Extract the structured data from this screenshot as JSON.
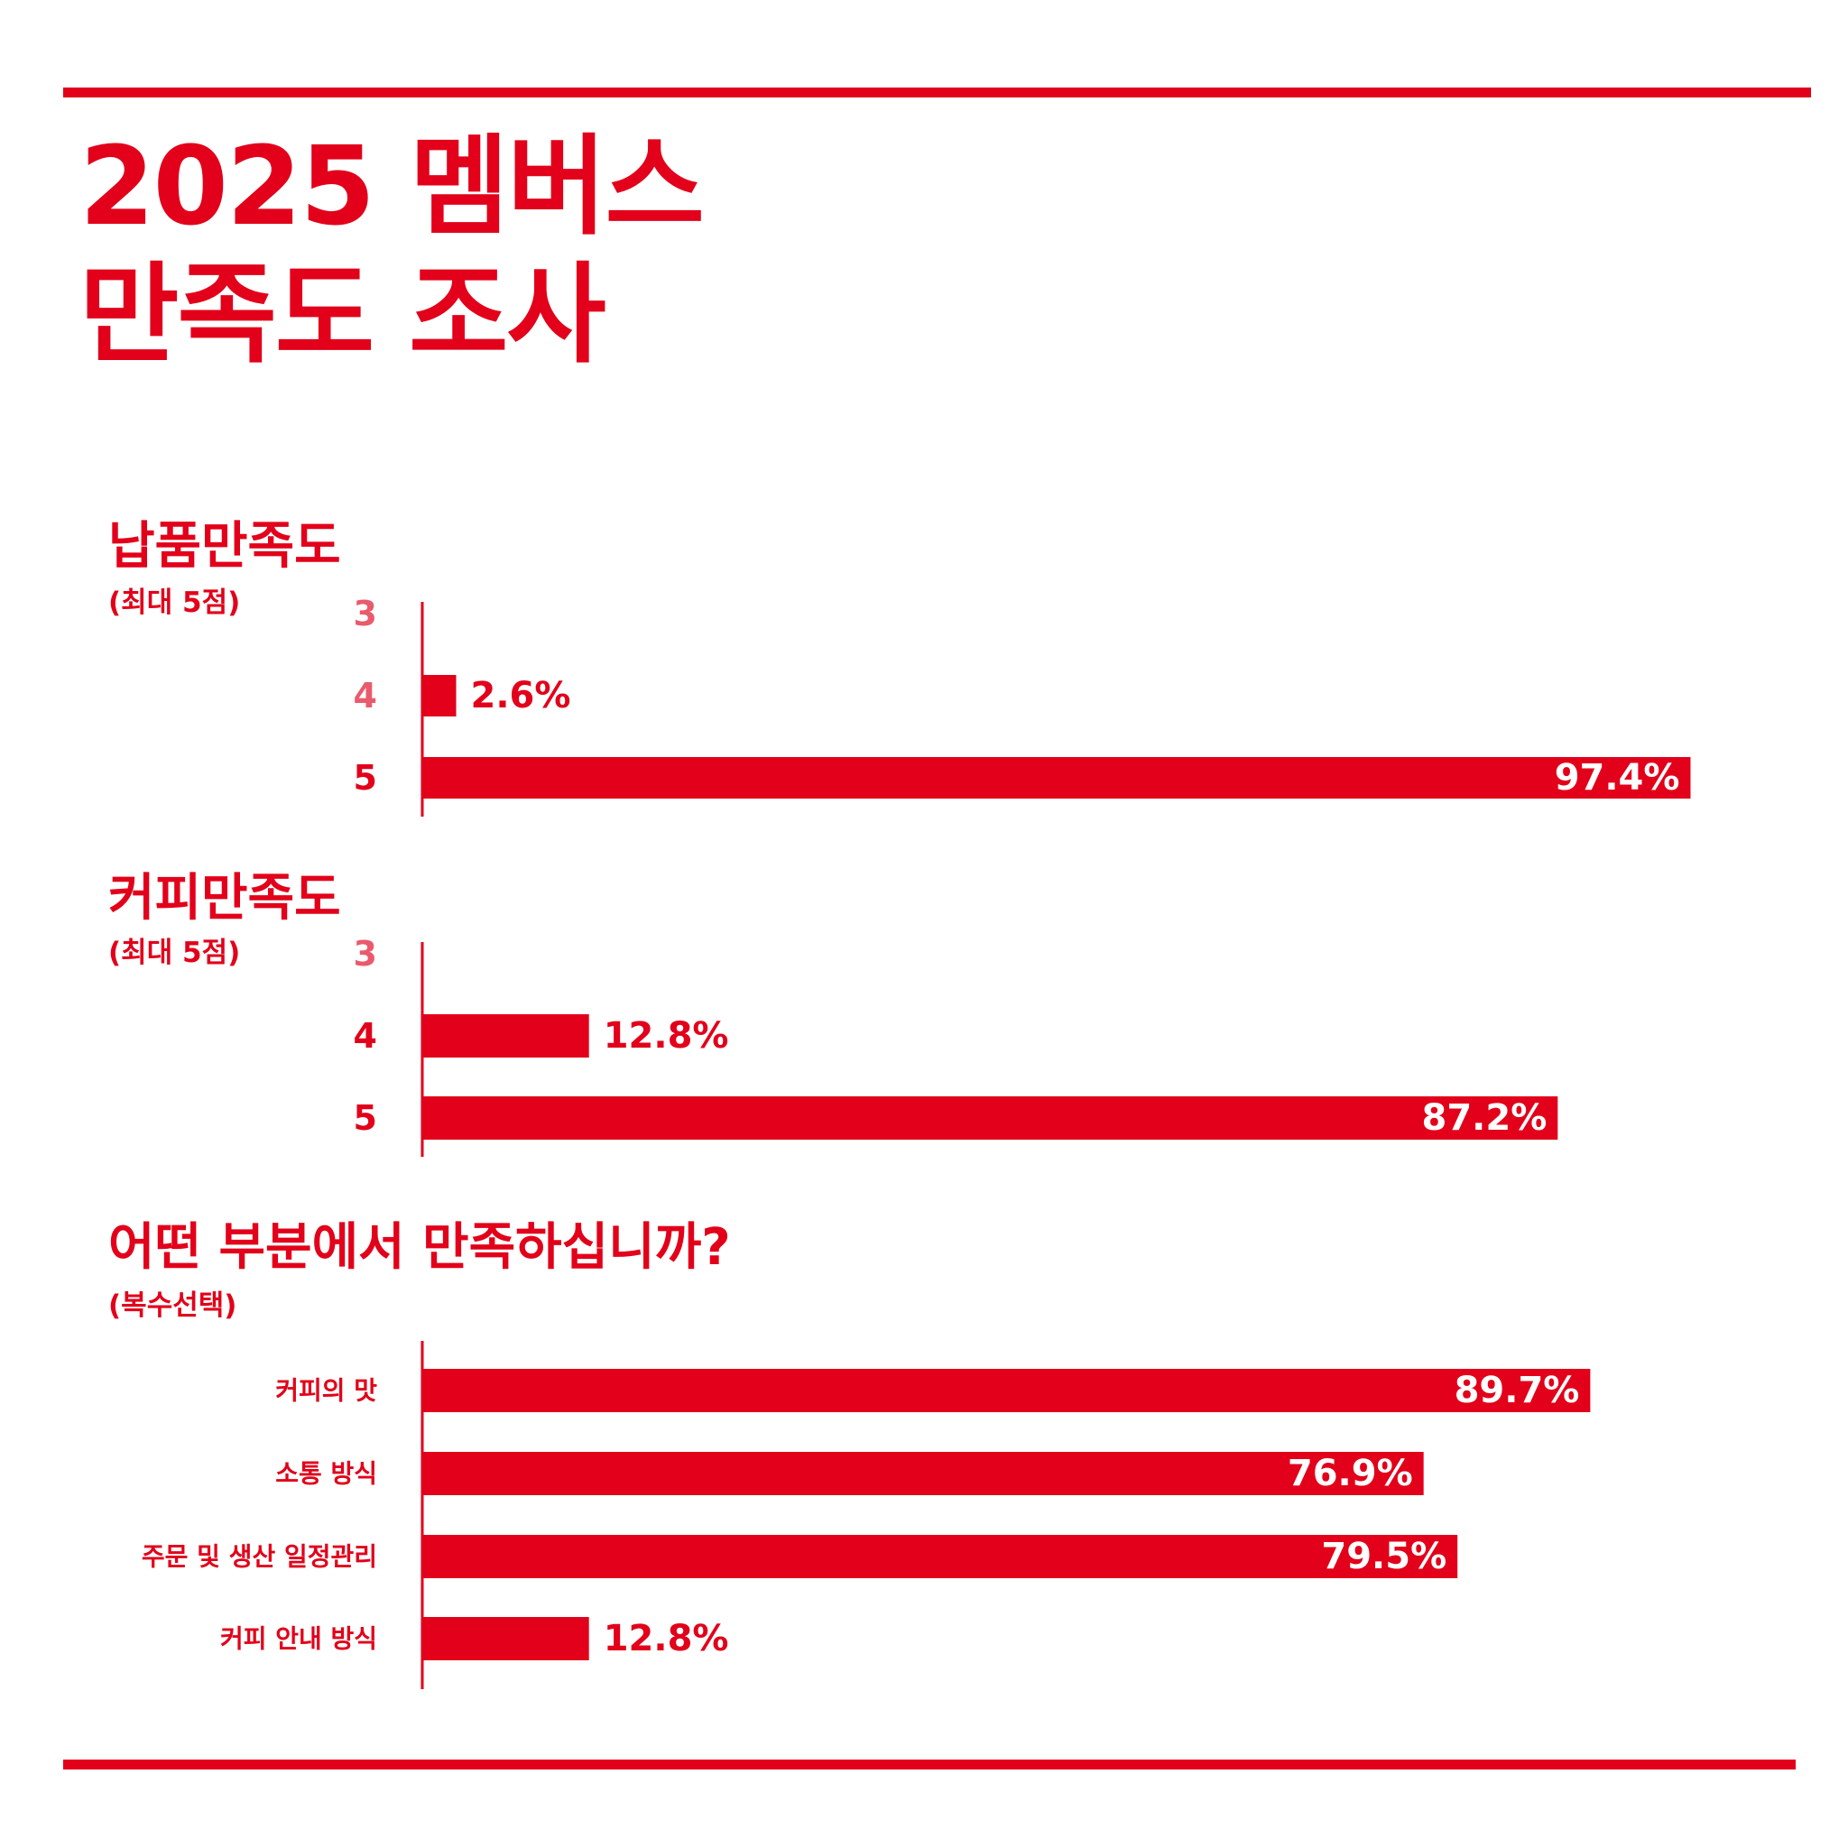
{
  "header": {
    "title_line1": "2025 멤버스",
    "title_line2": "만족도 조사"
  },
  "colors": {
    "primary": "#e2001a",
    "muted": "#ea5a6d",
    "background": "#ffffff",
    "on_bar": "#ffffff"
  },
  "chart_data": [
    {
      "type": "bar",
      "orientation": "horizontal",
      "title": "납품만족도",
      "subtitle": "(최대 5점)",
      "categories": [
        "3",
        "4",
        "5"
      ],
      "values": [
        0,
        2.6,
        97.4
      ],
      "value_labels": [
        "",
        "2.6%",
        "97.4%"
      ],
      "unit": "%",
      "xlim": [
        0,
        100
      ],
      "grid": false,
      "legend": "none"
    },
    {
      "type": "bar",
      "orientation": "horizontal",
      "title": "커피만족도",
      "subtitle": "(최대 5점)",
      "categories": [
        "3",
        "4",
        "5"
      ],
      "values": [
        0,
        12.8,
        87.2
      ],
      "value_labels": [
        "",
        "12.8%",
        "87.2%"
      ],
      "unit": "%",
      "xlim": [
        0,
        100
      ],
      "grid": false,
      "legend": "none"
    },
    {
      "type": "bar",
      "orientation": "horizontal",
      "title": "어떤 부분에서 만족하십니까?",
      "subtitle": "(복수선택)",
      "categories": [
        "커피의 맛",
        "소통 방식",
        "주문 및 생산 일정관리",
        "커피 안내 방식"
      ],
      "values": [
        89.7,
        76.9,
        79.5,
        12.8
      ],
      "value_labels": [
        "89.7%",
        "76.9%",
        "79.5%",
        "12.8%"
      ],
      "unit": "%",
      "xlim": [
        0,
        100
      ],
      "grid": false,
      "legend": "none"
    }
  ]
}
